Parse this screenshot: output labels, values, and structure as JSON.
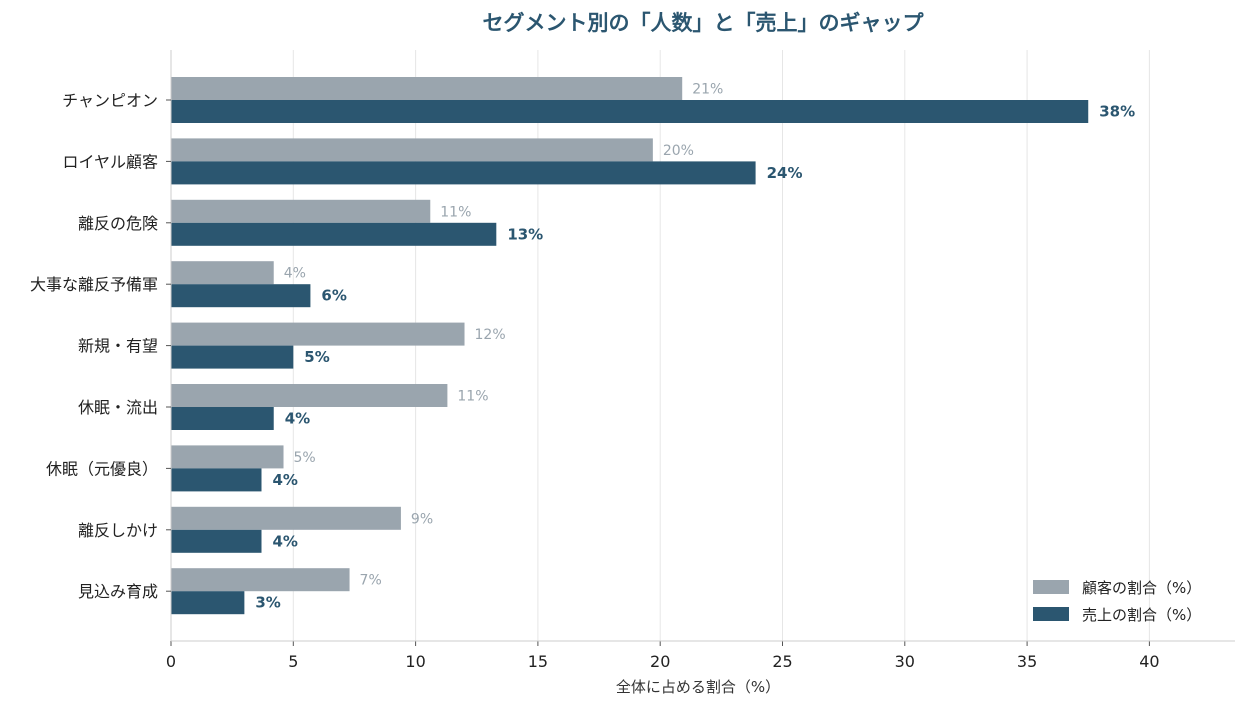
{
  "chart_data": {
    "type": "bar",
    "orientation": "horizontal",
    "title": "セグメント別の「人数」と「売上」のギャップ",
    "xlabel": "全体に占める割合（%）",
    "ylabel": "",
    "xlim": [
      0,
      43.5
    ],
    "xticks": [
      0,
      5,
      10,
      15,
      20,
      25,
      30,
      35,
      40
    ],
    "grid": "vertical",
    "legend_position": "bottom-right",
    "categories": [
      "チャンピオン",
      "ロイヤル顧客",
      "離反の危険",
      "大事な離反予備軍",
      "新規・有望",
      "休眠・流出",
      "休眠（元優良）",
      "離反しかけ",
      "見込み育成"
    ],
    "series": [
      {
        "name": "顧客の割合（%）",
        "color": "#9aa5ae",
        "values": [
          20.9,
          19.7,
          10.6,
          4.2,
          12.0,
          11.3,
          4.6,
          9.4,
          7.3
        ],
        "labels": [
          "21%",
          "20%",
          "11%",
          "4%",
          "12%",
          "11%",
          "5%",
          "9%",
          "7%"
        ]
      },
      {
        "name": "売上の割合（%）",
        "color": "#2b5670",
        "values": [
          37.5,
          23.9,
          13.3,
          5.7,
          5.0,
          4.2,
          3.7,
          3.7,
          3.0
        ],
        "labels": [
          "38%",
          "24%",
          "13%",
          "6%",
          "5%",
          "4%",
          "4%",
          "4%",
          "3%"
        ]
      }
    ]
  }
}
